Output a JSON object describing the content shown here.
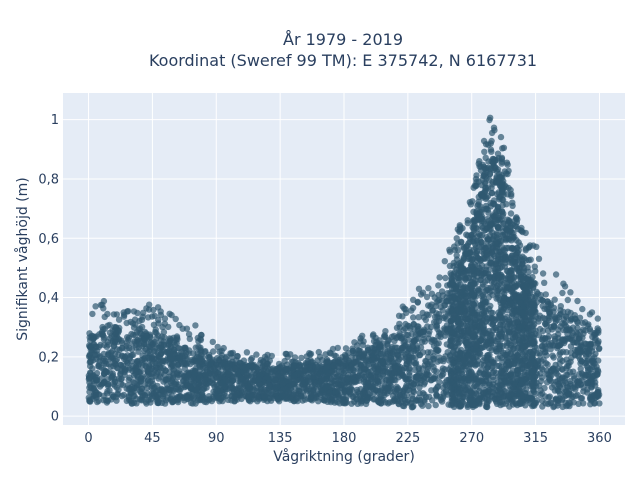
{
  "chart_data": {
    "type": "scatter",
    "title_line1": "År 1979 - 2019",
    "title_line2": "Koordinat (Sweref 99 TM): E 375742, N 6167731",
    "xlabel": "Vågriktning (grader)",
    "ylabel": "Signifikant våghöjd (m)",
    "xlim": [
      -18,
      378
    ],
    "ylim": [
      -0.03,
      1.09
    ],
    "x_ticks": [
      0,
      45,
      90,
      135,
      180,
      225,
      270,
      315,
      360
    ],
    "x_tick_labels": [
      "0",
      "45",
      "90",
      "135",
      "180",
      "225",
      "270",
      "315",
      "360"
    ],
    "y_ticks": [
      0,
      0.2,
      0.4,
      0.6,
      0.8,
      1
    ],
    "y_tick_labels": [
      "0",
      "0,2",
      "0,4",
      "0,6",
      "0,8",
      "1"
    ],
    "grid": true,
    "legend": "none",
    "marker_color": "#2f5871",
    "marker_opacity": 0.7,
    "background_color": "#e5ecf6",
    "envelope": {
      "direction": [
        0,
        10,
        20,
        30,
        45,
        60,
        75,
        90,
        105,
        120,
        135,
        150,
        165,
        180,
        195,
        210,
        225,
        240,
        255,
        262,
        270,
        276,
        280,
        284,
        288,
        292,
        296,
        300,
        305,
        312,
        320,
        330,
        340,
        350,
        360
      ],
      "height_min": [
        0.04,
        0.04,
        0.04,
        0.04,
        0.04,
        0.04,
        0.04,
        0.05,
        0.05,
        0.05,
        0.05,
        0.05,
        0.05,
        0.04,
        0.04,
        0.04,
        0.03,
        0.03,
        0.03,
        0.03,
        0.03,
        0.03,
        0.03,
        0.03,
        0.03,
        0.03,
        0.03,
        0.03,
        0.03,
        0.03,
        0.03,
        0.03,
        0.03,
        0.04,
        0.04
      ],
      "height_max": [
        0.37,
        0.39,
        0.37,
        0.35,
        0.39,
        0.34,
        0.31,
        0.27,
        0.23,
        0.21,
        0.21,
        0.21,
        0.22,
        0.24,
        0.28,
        0.3,
        0.4,
        0.47,
        0.58,
        0.65,
        0.76,
        0.88,
        0.96,
        1.03,
        1.0,
        0.92,
        0.84,
        0.75,
        0.66,
        0.59,
        0.55,
        0.5,
        0.45,
        0.41,
        0.35
      ],
      "dense_height_max": [
        0.28,
        0.3,
        0.29,
        0.28,
        0.28,
        0.25,
        0.22,
        0.2,
        0.18,
        0.17,
        0.17,
        0.17,
        0.18,
        0.2,
        0.22,
        0.25,
        0.3,
        0.36,
        0.45,
        0.52,
        0.62,
        0.74,
        0.82,
        0.86,
        0.82,
        0.75,
        0.67,
        0.58,
        0.5,
        0.44,
        0.4,
        0.36,
        0.33,
        0.3,
        0.28
      ]
    }
  }
}
